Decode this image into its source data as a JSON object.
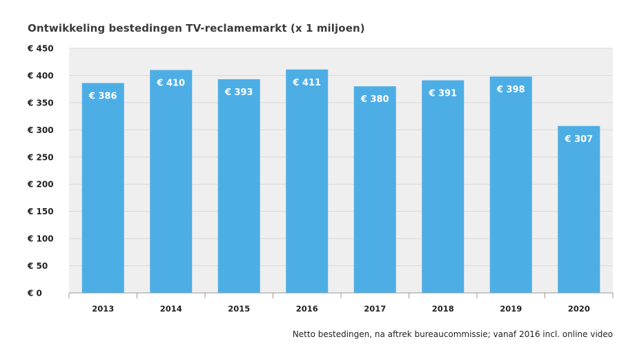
{
  "chart_data": {
    "type": "bar",
    "title": "Ontwikkeling bestedingen TV-reclamemarkt (x 1 miljoen)",
    "categories": [
      "2013",
      "2014",
      "2015",
      "2016",
      "2017",
      "2018",
      "2019",
      "2020"
    ],
    "values": [
      386,
      410,
      393,
      411,
      380,
      391,
      398,
      307
    ],
    "data_labels": [
      "€ 386",
      "€ 410",
      "€ 393",
      "€ 411",
      "€ 380",
      "€ 391",
      "€ 398",
      "€ 307"
    ],
    "yticks": [
      0,
      50,
      100,
      150,
      200,
      250,
      300,
      350,
      400,
      450
    ],
    "ytick_labels": [
      "€   0",
      "€  50",
      "€ 100",
      "€ 150",
      "€ 200",
      "€ 250",
      "€ 300",
      "€ 350",
      "€ 400",
      "€ 450"
    ],
    "ylim": [
      0,
      450
    ],
    "xlabel": "",
    "ylabel": "",
    "grid": true,
    "bar_color": "#4daee6",
    "plot_background": "#efefef",
    "note": "Netto bestedingen, na aftrek bureaucommissie; vanaf 2016 incl. online video"
  }
}
